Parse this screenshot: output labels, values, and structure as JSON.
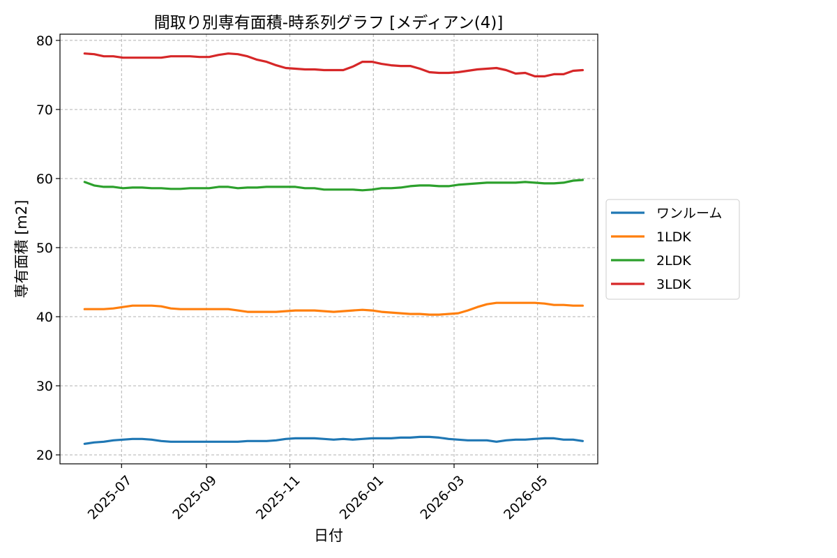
{
  "chart_data": {
    "type": "line",
    "title": "間取り別専有面積-時系列グラフ [メディアン(4)]",
    "xlabel": "日付",
    "ylabel": "専有面積 [m2]",
    "xlim": [
      "2025-05-17",
      "2026-06-14"
    ],
    "ylim": [
      18.7,
      80.9
    ],
    "x_ticks": [
      "2025-07",
      "2025-09",
      "2025-11",
      "2026-01",
      "2026-03",
      "2026-05"
    ],
    "y_ticks": [
      20,
      30,
      40,
      50,
      60,
      70,
      80
    ],
    "grid": true,
    "legend_position": "outside right",
    "x": [
      "2025-06-04",
      "2025-06-11",
      "2025-06-18",
      "2025-06-25",
      "2025-07-02",
      "2025-07-09",
      "2025-07-16",
      "2025-07-23",
      "2025-07-30",
      "2025-08-06",
      "2025-08-13",
      "2025-08-20",
      "2025-08-27",
      "2025-09-03",
      "2025-09-10",
      "2025-09-17",
      "2025-09-24",
      "2025-10-01",
      "2025-10-08",
      "2025-10-15",
      "2025-10-22",
      "2025-10-29",
      "2025-11-05",
      "2025-11-12",
      "2025-11-19",
      "2025-11-26",
      "2025-12-03",
      "2025-12-10",
      "2025-12-17",
      "2025-12-24",
      "2025-12-31",
      "2026-01-07",
      "2026-01-14",
      "2026-01-21",
      "2026-01-28",
      "2026-02-04",
      "2026-02-11",
      "2026-02-18",
      "2026-02-25",
      "2026-03-04",
      "2026-03-11",
      "2026-03-18",
      "2026-03-25",
      "2026-04-01",
      "2026-04-08",
      "2026-04-15",
      "2026-04-22",
      "2026-04-29",
      "2026-05-06",
      "2026-05-13",
      "2026-05-20",
      "2026-05-27",
      "2026-06-03"
    ],
    "series": [
      {
        "name": "ワンルーム",
        "color": "#1f77b4",
        "values": [
          21.6,
          21.8,
          21.9,
          22.1,
          22.2,
          22.3,
          22.3,
          22.2,
          22.0,
          21.9,
          21.9,
          21.9,
          21.9,
          21.9,
          21.9,
          21.9,
          21.9,
          22.0,
          22.0,
          22.0,
          22.1,
          22.3,
          22.4,
          22.4,
          22.4,
          22.3,
          22.2,
          22.3,
          22.2,
          22.3,
          22.4,
          22.4,
          22.4,
          22.5,
          22.5,
          22.6,
          22.6,
          22.5,
          22.3,
          22.2,
          22.1,
          22.1,
          22.1,
          21.9,
          22.1,
          22.2,
          22.2,
          22.3,
          22.4,
          22.4,
          22.2,
          22.2,
          22.0
        ]
      },
      {
        "name": "1LDK",
        "color": "#ff7f0e",
        "values": [
          41.1,
          41.1,
          41.1,
          41.2,
          41.4,
          41.6,
          41.6,
          41.6,
          41.5,
          41.2,
          41.1,
          41.1,
          41.1,
          41.1,
          41.1,
          41.1,
          40.9,
          40.7,
          40.7,
          40.7,
          40.7,
          40.8,
          40.9,
          40.9,
          40.9,
          40.8,
          40.7,
          40.8,
          40.9,
          41.0,
          40.9,
          40.7,
          40.6,
          40.5,
          40.4,
          40.4,
          40.3,
          40.3,
          40.4,
          40.5,
          40.9,
          41.4,
          41.8,
          42.0,
          42.0,
          42.0,
          42.0,
          42.0,
          41.9,
          41.7,
          41.7,
          41.6,
          41.6
        ]
      },
      {
        "name": "2LDK",
        "color": "#2ca02c",
        "values": [
          59.5,
          59.0,
          58.8,
          58.8,
          58.6,
          58.7,
          58.7,
          58.6,
          58.6,
          58.5,
          58.5,
          58.6,
          58.6,
          58.6,
          58.8,
          58.8,
          58.6,
          58.7,
          58.7,
          58.8,
          58.8,
          58.8,
          58.8,
          58.6,
          58.6,
          58.4,
          58.4,
          58.4,
          58.4,
          58.3,
          58.4,
          58.6,
          58.6,
          58.7,
          58.9,
          59.0,
          59.0,
          58.9,
          58.9,
          59.1,
          59.2,
          59.3,
          59.4,
          59.4,
          59.4,
          59.4,
          59.5,
          59.4,
          59.3,
          59.3,
          59.4,
          59.7,
          59.8
        ]
      },
      {
        "name": "3LDK",
        "color": "#d62728",
        "values": [
          78.1,
          78.0,
          77.7,
          77.7,
          77.5,
          77.5,
          77.5,
          77.5,
          77.5,
          77.7,
          77.7,
          77.7,
          77.6,
          77.6,
          77.9,
          78.1,
          78.0,
          77.7,
          77.2,
          76.9,
          76.4,
          76.0,
          75.9,
          75.8,
          75.8,
          75.7,
          75.7,
          75.7,
          76.2,
          76.9,
          76.9,
          76.6,
          76.4,
          76.3,
          76.3,
          75.9,
          75.4,
          75.3,
          75.3,
          75.4,
          75.6,
          75.8,
          75.9,
          76.0,
          75.7,
          75.2,
          75.3,
          74.8,
          74.8,
          75.1,
          75.1,
          75.6,
          75.7
        ]
      }
    ]
  }
}
